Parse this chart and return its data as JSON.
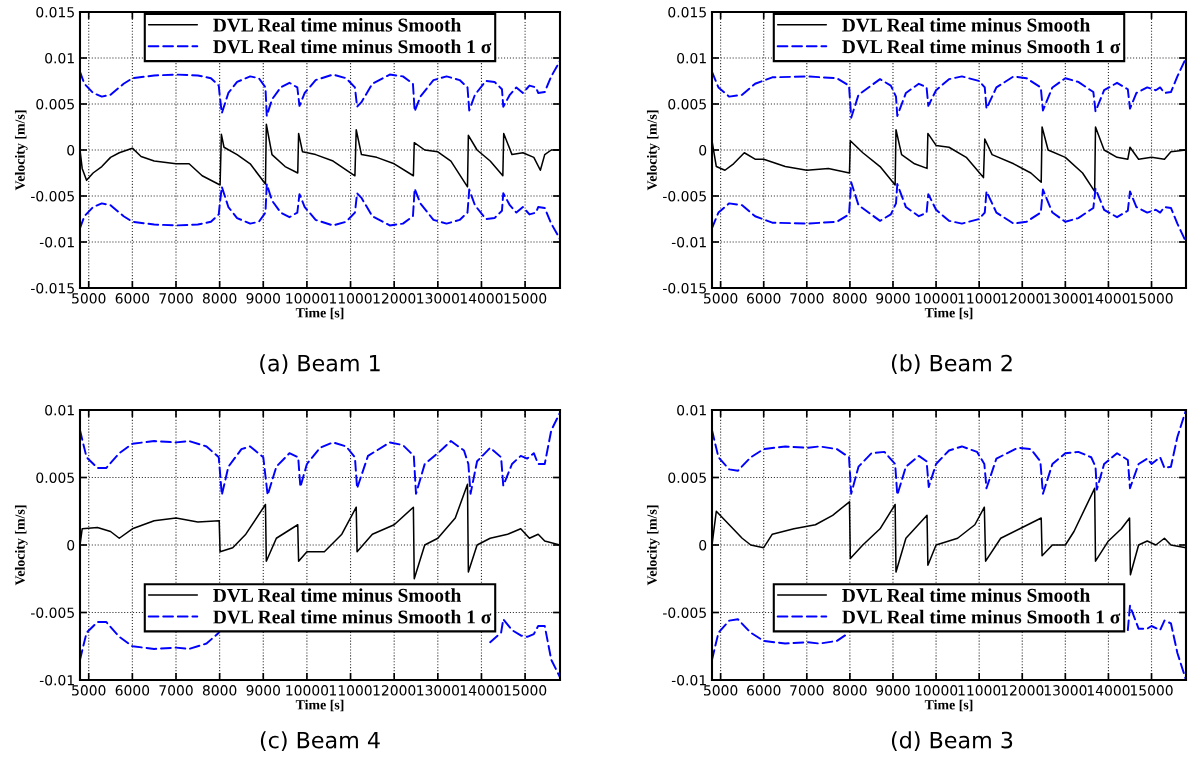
{
  "chart_data": [
    {
      "type": "line",
      "xlabel": "Time [s]",
      "ylabel": "Velocity [m/s]",
      "annotations": [
        "(a) Beam 1"
      ],
      "xlim": [
        4800,
        15800
      ],
      "ylim": [
        -0.015,
        0.015
      ],
      "xticks": [
        5000,
        6000,
        7000,
        8000,
        9000,
        10000,
        11000,
        12000,
        13000,
        14000,
        15000
      ],
      "yticks": [
        -0.015,
        -0.01,
        -0.005,
        0,
        0.005,
        0.01,
        0.015
      ],
      "grid": true,
      "legend": "top",
      "series": [
        {
          "name": "DVL Real time minus Smooth",
          "color": "#000000",
          "line_style": "solid",
          "x": [
            4800,
            4850,
            4950,
            5100,
            5300,
            5500,
            5700,
            6000,
            6200,
            6500,
            7000,
            7300,
            7600,
            8010,
            8040,
            8100,
            8400,
            8700,
            9050,
            9070,
            9200,
            9500,
            9790,
            9810,
            9900,
            10200,
            10600,
            11100,
            11130,
            11250,
            11600,
            12000,
            12440,
            12460,
            12700,
            13000,
            13300,
            13680,
            13700,
            13900,
            14200,
            14490,
            14510,
            14700,
            14950,
            15200,
            15350,
            15450,
            15600,
            15800
          ],
          "values": [
            0,
            -0.002,
            -0.0033,
            -0.0025,
            -0.0018,
            -0.0008,
            -0.0003,
            0.0002,
            -0.0007,
            -0.0012,
            -0.0015,
            -0.0015,
            -0.0028,
            -0.0038,
            0.0017,
            0.0003,
            -0.0005,
            -0.0015,
            -0.0037,
            0.0028,
            -0.0005,
            -0.0018,
            -0.0025,
            0.0018,
            -0.0002,
            -0.0005,
            -0.0012,
            -0.0028,
            0.0022,
            -0.0005,
            -0.0008,
            -0.0015,
            -0.0028,
            0.0008,
            0,
            -0.0002,
            -0.0012,
            -0.004,
            0.0016,
            0,
            -0.0012,
            -0.0028,
            0.0018,
            -0.0005,
            -0.0003,
            -0.0008,
            -0.0022,
            -0.0005,
            0,
            0
          ]
        },
        {
          "name": "DVL Real time minus Smooth 1 σ",
          "color": "#0000ff",
          "line_style": "dashed",
          "x": [
            4800,
            4900,
            5100,
            5300,
            5500,
            5800,
            6000,
            6500,
            7000,
            7500,
            7800,
            7980,
            8000,
            8050,
            8200,
            8400,
            8700,
            8900,
            9050,
            9080,
            9200,
            9400,
            9600,
            9780,
            9830,
            9950,
            10200,
            10600,
            10900,
            11100,
            11150,
            11250,
            11500,
            11900,
            12200,
            12430,
            12470,
            12600,
            12900,
            13200,
            13500,
            13680,
            13720,
            13850,
            14100,
            14300,
            14470,
            14500,
            14650,
            14800,
            14950,
            15100,
            15250,
            15300,
            15450,
            15600,
            15800
          ],
          "values": [
            0.0085,
            0.0072,
            0.0062,
            0.0058,
            0.006,
            0.0072,
            0.0078,
            0.0081,
            0.0082,
            0.0081,
            0.0078,
            0.007,
            0.006,
            0.004,
            0.0062,
            0.0074,
            0.008,
            0.0078,
            0.0068,
            0.0037,
            0.0055,
            0.0068,
            0.0073,
            0.0068,
            0.0048,
            0.0062,
            0.0076,
            0.0082,
            0.0078,
            0.0068,
            0.0047,
            0.0052,
            0.0072,
            0.0082,
            0.008,
            0.0072,
            0.0042,
            0.0058,
            0.0076,
            0.008,
            0.0076,
            0.0068,
            0.0043,
            0.006,
            0.0075,
            0.0074,
            0.0066,
            0.0047,
            0.006,
            0.0068,
            0.0062,
            0.007,
            0.0068,
            0.0062,
            0.0063,
            0.008,
            0.0097
          ]
        },
        {
          "color": "#0000ff",
          "line_style": "dashed",
          "x": [
            4800,
            4900,
            5100,
            5300,
            5500,
            5800,
            6000,
            6500,
            7000,
            7500,
            7800,
            7980,
            8000,
            8050,
            8200,
            8400,
            8700,
            8900,
            9050,
            9080,
            9200,
            9400,
            9600,
            9780,
            9830,
            9950,
            10200,
            10600,
            10900,
            11100,
            11150,
            11250,
            11500,
            11900,
            12200,
            12430,
            12470,
            12600,
            12900,
            13200,
            13500,
            13680,
            13720,
            13850,
            14100,
            14300,
            14470,
            14500,
            14650,
            14800,
            14950,
            15100,
            15250,
            15300,
            15450,
            15600,
            15800
          ],
          "values": [
            -0.0085,
            -0.0072,
            -0.0062,
            -0.0058,
            -0.006,
            -0.0072,
            -0.0078,
            -0.0081,
            -0.0082,
            -0.0081,
            -0.0078,
            -0.007,
            -0.006,
            -0.004,
            -0.0062,
            -0.0074,
            -0.008,
            -0.0078,
            -0.0068,
            -0.0037,
            -0.0055,
            -0.0068,
            -0.0073,
            -0.0068,
            -0.0048,
            -0.0062,
            -0.0076,
            -0.0082,
            -0.0078,
            -0.0068,
            -0.0047,
            -0.0052,
            -0.0072,
            -0.0082,
            -0.008,
            -0.0072,
            -0.0042,
            -0.0058,
            -0.0076,
            -0.008,
            -0.0076,
            -0.0068,
            -0.0043,
            -0.006,
            -0.0075,
            -0.0074,
            -0.0066,
            -0.0047,
            -0.006,
            -0.0068,
            -0.0062,
            -0.007,
            -0.0068,
            -0.0062,
            -0.0063,
            -0.008,
            -0.0097
          ]
        }
      ]
    },
    {
      "type": "line",
      "xlabel": "Time [s]",
      "ylabel": "Velocity [m/s]",
      "annotations": [
        "(b) Beam 2"
      ],
      "xlim": [
        4800,
        15800
      ],
      "ylim": [
        -0.015,
        0.015
      ],
      "xticks": [
        5000,
        6000,
        7000,
        8000,
        9000,
        10000,
        11000,
        12000,
        13000,
        14000,
        15000
      ],
      "yticks": [
        -0.015,
        -0.01,
        -0.005,
        0,
        0.005,
        0.01,
        0.015
      ],
      "grid": true,
      "legend": "top",
      "series": [
        {
          "name": "DVL Real time minus Smooth",
          "color": "#000000",
          "line_style": "solid",
          "x": [
            4800,
            4900,
            5100,
            5300,
            5550,
            5800,
            6000,
            6500,
            7000,
            7500,
            7990,
            8010,
            8300,
            8700,
            9050,
            9070,
            9200,
            9500,
            9790,
            9810,
            10000,
            10300,
            10700,
            11100,
            11130,
            11300,
            11800,
            12200,
            12440,
            12460,
            12600,
            13000,
            13400,
            13680,
            13700,
            13900,
            14200,
            14450,
            14500,
            14700,
            15000,
            15300,
            15450,
            15800
          ],
          "values": [
            0.001,
            -0.0018,
            -0.0022,
            -0.0015,
            -0.0003,
            -0.001,
            -0.001,
            -0.0018,
            -0.0022,
            -0.002,
            -0.0025,
            0.001,
            -0.0003,
            -0.0018,
            -0.0038,
            0.0022,
            -0.0005,
            -0.0015,
            -0.002,
            0.0018,
            0.0005,
            0.0003,
            -0.0008,
            -0.003,
            0.0012,
            -0.0005,
            -0.0015,
            -0.0025,
            -0.0035,
            0.0025,
            0,
            -0.0008,
            -0.0025,
            -0.0045,
            0.0025,
            0,
            -0.0008,
            -0.001,
            0.0003,
            -0.001,
            -0.0008,
            -0.001,
            -0.0002,
            0
          ]
        },
        {
          "name": "DVL Real time minus Smooth 1 σ",
          "color": "#0000ff",
          "line_style": "dashed",
          "x": [
            4800,
            4950,
            5200,
            5500,
            5800,
            6200,
            7000,
            7700,
            7980,
            8030,
            8200,
            8700,
            8950,
            9070,
            9100,
            9300,
            9600,
            9780,
            9820,
            10000,
            10300,
            10600,
            11000,
            11130,
            11170,
            11400,
            11800,
            12100,
            12430,
            12480,
            12700,
            13000,
            13300,
            13650,
            13700,
            13900,
            14200,
            14450,
            14500,
            14650,
            14900,
            15100,
            15200,
            15300,
            15450,
            15600,
            15800
          ],
          "values": [
            0.0085,
            0.0068,
            0.0058,
            0.006,
            0.0072,
            0.0079,
            0.008,
            0.0078,
            0.007,
            0.0035,
            0.006,
            0.0077,
            0.007,
            0.0058,
            0.0037,
            0.0062,
            0.0072,
            0.0068,
            0.0048,
            0.0065,
            0.0077,
            0.008,
            0.0075,
            0.0068,
            0.0045,
            0.0068,
            0.008,
            0.0078,
            0.0068,
            0.0043,
            0.0068,
            0.0078,
            0.0074,
            0.0063,
            0.0042,
            0.0065,
            0.0073,
            0.0066,
            0.0045,
            0.0062,
            0.0068,
            0.0065,
            0.0068,
            0.0062,
            0.0063,
            0.008,
            0.01
          ]
        },
        {
          "color": "#0000ff",
          "line_style": "dashed",
          "x": [
            4800,
            4950,
            5200,
            5500,
            5800,
            6200,
            7000,
            7700,
            7980,
            8030,
            8200,
            8700,
            8950,
            9070,
            9100,
            9300,
            9600,
            9780,
            9820,
            10000,
            10300,
            10600,
            11000,
            11130,
            11170,
            11400,
            11800,
            12100,
            12430,
            12480,
            12700,
            13000,
            13300,
            13650,
            13700,
            13900,
            14200,
            14450,
            14500,
            14650,
            14900,
            15100,
            15200,
            15300,
            15450,
            15600,
            15800
          ],
          "values": [
            -0.0085,
            -0.0068,
            -0.0058,
            -0.006,
            -0.0072,
            -0.0079,
            -0.008,
            -0.0078,
            -0.007,
            -0.0035,
            -0.006,
            -0.0077,
            -0.007,
            -0.0058,
            -0.0037,
            -0.0062,
            -0.0072,
            -0.0068,
            -0.0048,
            -0.0065,
            -0.0077,
            -0.008,
            -0.0075,
            -0.0068,
            -0.0045,
            -0.0068,
            -0.008,
            -0.0078,
            -0.0068,
            -0.0043,
            -0.0068,
            -0.0078,
            -0.0074,
            -0.0063,
            -0.0042,
            -0.0065,
            -0.0073,
            -0.0066,
            -0.0045,
            -0.0062,
            -0.0068,
            -0.0065,
            -0.0068,
            -0.0062,
            -0.0063,
            -0.008,
            -0.01
          ]
        }
      ]
    },
    {
      "type": "line",
      "xlabel": "Time [s]",
      "ylabel": "Velocity [m/s]",
      "annotations": [
        "(c) Beam 4"
      ],
      "xlim": [
        4800,
        15800
      ],
      "ylim": [
        -0.01,
        0.01
      ],
      "xticks": [
        5000,
        6000,
        7000,
        8000,
        9000,
        10000,
        11000,
        12000,
        13000,
        14000,
        15000
      ],
      "yticks": [
        -0.01,
        -0.005,
        0,
        0.005,
        0.01
      ],
      "grid": true,
      "legend": "bottom",
      "series": [
        {
          "name": "DVL Real time minus Smooth",
          "color": "#000000",
          "line_style": "solid",
          "x": [
            4800,
            4850,
            5200,
            5500,
            5700,
            6000,
            6500,
            7000,
            7500,
            7990,
            8010,
            8300,
            8600,
            9050,
            9070,
            9300,
            9790,
            9810,
            10000,
            10400,
            10800,
            11130,
            11150,
            11500,
            12000,
            12440,
            12460,
            12700,
            13000,
            13400,
            13680,
            13700,
            13900,
            14200,
            14600,
            14900,
            15100,
            15300,
            15450,
            15800
          ],
          "values": [
            0,
            0.0012,
            0.0013,
            0.001,
            0.0005,
            0.0012,
            0.0018,
            0.002,
            0.0017,
            0.0018,
            -0.0005,
            -0.0002,
            0.0008,
            0.003,
            -0.0012,
            0.0005,
            0.0015,
            -0.0012,
            -0.0005,
            -0.0005,
            0.0008,
            0.0028,
            -0.0005,
            0.0008,
            0.0015,
            0.0028,
            -0.0025,
            0,
            0.0005,
            0.002,
            0.0045,
            -0.002,
            0,
            0.0005,
            0.0008,
            0.0012,
            0.0005,
            0.0008,
            0.0003,
            0
          ]
        },
        {
          "name": "DVL Real time minus Smooth 1 σ",
          "color": "#0000ff",
          "line_style": "dashed",
          "x": [
            4800,
            4950,
            5200,
            5400,
            5700,
            6000,
            6500,
            7000,
            7300,
            7700,
            7980,
            8050,
            8200,
            8500,
            8700,
            9000,
            9100,
            9300,
            9600,
            9800,
            9850,
            10000,
            10300,
            10600,
            10900,
            11100,
            11150,
            11400,
            11900,
            12200,
            12450,
            12500,
            12700,
            13000,
            13300,
            13600,
            13700,
            13750,
            13900,
            14200,
            14450,
            14500,
            14700,
            14900,
            15050,
            15200,
            15300,
            15450,
            15600,
            15800
          ],
          "values": [
            0.0085,
            0.0065,
            0.0057,
            0.0057,
            0.0068,
            0.0075,
            0.0077,
            0.0076,
            0.0077,
            0.0073,
            0.0065,
            0.0037,
            0.0058,
            0.0071,
            0.0073,
            0.0065,
            0.0037,
            0.0058,
            0.0068,
            0.0065,
            0.0043,
            0.006,
            0.0072,
            0.0076,
            0.0073,
            0.0065,
            0.0042,
            0.0066,
            0.0076,
            0.0074,
            0.0066,
            0.0038,
            0.006,
            0.0068,
            0.0077,
            0.007,
            0.006,
            0.0038,
            0.0062,
            0.0072,
            0.0065,
            0.0044,
            0.006,
            0.0066,
            0.0064,
            0.0068,
            0.006,
            0.006,
            0.0085,
            0.0098
          ]
        },
        {
          "color": "#0000ff",
          "line_style": "dashed",
          "x": [
            4800,
            4950,
            5200,
            5400,
            5700,
            6000,
            6500,
            7000,
            7300,
            7700,
            7980,
            8050,
            8200,
            8500,
            8700,
            9000,
            9100,
            9300,
            9600,
            9800,
            9850,
            10000,
            10300,
            10600,
            10900,
            11100,
            11150,
            11400,
            11900,
            12200,
            12450,
            12500,
            12700,
            13000,
            13300,
            13600,
            13700,
            13750,
            13900,
            14200,
            14450,
            14500,
            14700,
            14900,
            15050,
            15200,
            15300,
            15450,
            15600,
            15800
          ],
          "values": [
            -0.0085,
            -0.0065,
            -0.0057,
            -0.0057,
            -0.0068,
            -0.0075,
            -0.0077,
            -0.0076,
            -0.0077,
            -0.0073,
            -0.0065,
            null,
            null,
            null,
            null,
            null,
            null,
            null,
            null,
            null,
            null,
            null,
            null,
            null,
            null,
            null,
            null,
            null,
            null,
            null,
            null,
            null,
            null,
            null,
            null,
            null,
            null,
            null,
            null,
            -0.0072,
            -0.0065,
            -0.0055,
            -0.0063,
            -0.0067,
            -0.0068,
            -0.0066,
            -0.006,
            -0.006,
            -0.0085,
            -0.0098
          ]
        }
      ]
    },
    {
      "type": "line",
      "xlabel": "Time [s]",
      "ylabel": "Velocity [m/s]",
      "annotations": [
        "(d) Beam 3"
      ],
      "xlim": [
        4800,
        15800
      ],
      "ylim": [
        -0.01,
        0.01
      ],
      "xticks": [
        5000,
        6000,
        7000,
        8000,
        9000,
        10000,
        11000,
        12000,
        13000,
        14000,
        15000
      ],
      "yticks": [
        -0.01,
        -0.005,
        0,
        0.005,
        0.01
      ],
      "grid": true,
      "legend": "bottom",
      "series": [
        {
          "name": "DVL Real time minus Smooth",
          "color": "#000000",
          "line_style": "solid",
          "x": [
            4800,
            4900,
            5200,
            5500,
            5700,
            6000,
            6200,
            6700,
            7200,
            7600,
            7990,
            8010,
            8300,
            8700,
            9050,
            9070,
            9300,
            9790,
            9810,
            10000,
            10500,
            10900,
            11120,
            11150,
            11500,
            12000,
            12440,
            12460,
            12700,
            13000,
            13200,
            13680,
            13700,
            14000,
            14300,
            14490,
            14510,
            14700,
            14900,
            15100,
            15300,
            15450,
            15800
          ],
          "values": [
            0,
            0.0025,
            0.0015,
            0.0005,
            0,
            -0.0002,
            0.0008,
            0.0012,
            0.0015,
            0.0022,
            0.0032,
            -0.001,
            0,
            0.0012,
            0.003,
            -0.002,
            0.0005,
            0.0022,
            -0.0015,
            0,
            0.0005,
            0.0015,
            0.0028,
            -0.0012,
            0.0005,
            0.0013,
            0.002,
            -0.0008,
            0,
            0,
            0.001,
            0.0042,
            -0.0012,
            0.0003,
            0.0012,
            0.002,
            -0.0022,
            0,
            0.0003,
            0,
            0.0005,
            0,
            -0.0002
          ]
        },
        {
          "name": "DVL Real time minus Smooth 1 σ",
          "color": "#0000ff",
          "line_style": "dashed",
          "x": [
            4800,
            4950,
            5200,
            5400,
            5700,
            6000,
            6500,
            7000,
            7300,
            7700,
            7980,
            8030,
            8200,
            8500,
            8800,
            9050,
            9100,
            9300,
            9600,
            9780,
            9830,
            10000,
            10300,
            10600,
            10950,
            11120,
            11170,
            11400,
            11900,
            12200,
            12420,
            12480,
            12700,
            13000,
            13300,
            13600,
            13700,
            13730,
            13900,
            14200,
            14450,
            14500,
            14700,
            14900,
            15000,
            15200,
            15300,
            15450,
            15600,
            15800
          ],
          "values": [
            0.0085,
            0.0065,
            0.0056,
            0.0055,
            0.0065,
            0.0071,
            0.0073,
            0.0072,
            0.0073,
            0.0071,
            0.0065,
            0.0038,
            0.0058,
            0.0068,
            0.0069,
            0.006,
            0.0037,
            0.0058,
            0.0066,
            0.0062,
            0.0043,
            0.006,
            0.007,
            0.0073,
            0.0069,
            0.006,
            0.0042,
            0.0064,
            0.0072,
            0.0071,
            0.0062,
            0.0038,
            0.006,
            0.0068,
            0.0069,
            0.0065,
            0.0058,
            0.0041,
            0.006,
            0.0068,
            0.0063,
            0.0042,
            0.006,
            0.0064,
            0.006,
            0.0065,
            0.0057,
            0.0058,
            0.008,
            0.01
          ]
        },
        {
          "color": "#0000ff",
          "line_style": "dashed",
          "x": [
            4800,
            4950,
            5200,
            5400,
            5700,
            6000,
            6500,
            7000,
            7300,
            7700,
            7980,
            8030,
            8200,
            8500,
            8800,
            9050,
            9100,
            9300,
            9600,
            9780,
            9830,
            10000,
            10300,
            10600,
            10950,
            11120,
            11170,
            11400,
            11900,
            12200,
            12420,
            12480,
            12700,
            13000,
            13300,
            13600,
            13700,
            13730,
            13900,
            14200,
            14450,
            14500,
            14700,
            14900,
            15000,
            15200,
            15300,
            15450,
            15600,
            15800
          ],
          "values": [
            -0.0085,
            -0.0065,
            -0.0056,
            -0.0055,
            -0.0065,
            -0.0071,
            -0.0073,
            -0.0072,
            -0.0073,
            -0.0071,
            -0.0065,
            null,
            null,
            null,
            null,
            null,
            null,
            null,
            null,
            null,
            null,
            null,
            null,
            null,
            null,
            null,
            null,
            null,
            null,
            null,
            null,
            null,
            null,
            null,
            null,
            null,
            null,
            null,
            null,
            null,
            -0.0063,
            -0.0045,
            -0.0062,
            -0.0062,
            -0.006,
            -0.0063,
            -0.0056,
            -0.0058,
            -0.008,
            -0.01
          ]
        }
      ]
    }
  ]
}
